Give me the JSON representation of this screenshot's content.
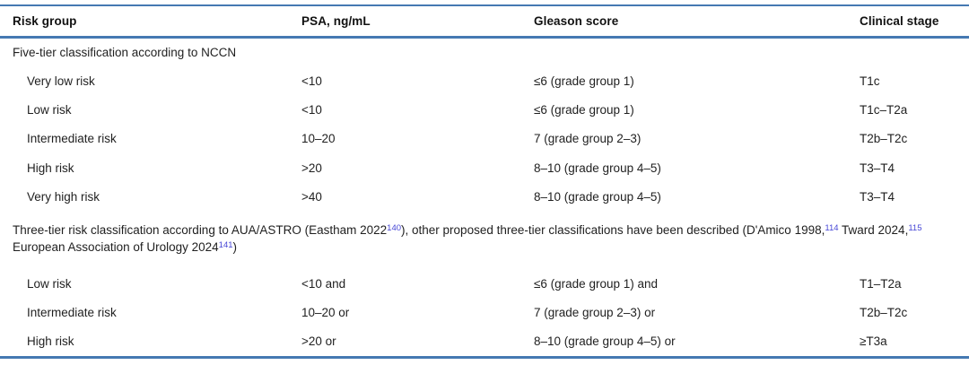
{
  "accent": {
    "rule_color": "#4579b2",
    "reference_color": "#4646d6"
  },
  "table": {
    "columns": [
      "Risk group",
      "PSA, ng/mL",
      "Gleason score",
      "Clinical stage"
    ],
    "sections": [
      {
        "layout": "single",
        "title_parts": [
          {
            "text": "Five-tier classification according to NCCN"
          }
        ],
        "rows": [
          [
            "Very low risk",
            "<10",
            "≤6 (grade group 1)",
            "T1c"
          ],
          [
            "Low risk",
            "<10",
            "≤6 (grade group 1)",
            "T1c–T2a"
          ],
          [
            "Intermediate risk",
            "10–20",
            "7 (grade group 2–3)",
            "T2b–T2c"
          ],
          [
            "High risk",
            ">20",
            "8–10 (grade group 4–5)",
            "T3–T4"
          ],
          [
            "Very high risk",
            ">40",
            "8–10 (grade group 4–5)",
            "T3–T4"
          ]
        ]
      },
      {
        "layout": "wrap",
        "title_parts": [
          {
            "text": "Three-tier risk classification according to AUA/ASTRO (Eastham 2022"
          },
          {
            "sup": "140"
          },
          {
            "text": "), other proposed three-tier classifications have been described (D'Amico 1998,"
          },
          {
            "sup": "114"
          },
          {
            "text": " Tward 2024,"
          },
          {
            "sup": "115"
          },
          {
            "text": " European Association of Urology 2024"
          },
          {
            "sup": "141"
          },
          {
            "text": ")"
          }
        ],
        "rows": [
          [
            "Low risk",
            "<10 and",
            "≤6 (grade group 1) and",
            "T1–T2a"
          ],
          [
            "Intermediate risk",
            "10–20 or",
            "7 (grade group 2–3) or",
            "T2b–T2c"
          ],
          [
            "High risk",
            ">20 or",
            "8–10 (grade group 4–5) or",
            "≥T3a"
          ]
        ]
      }
    ]
  }
}
